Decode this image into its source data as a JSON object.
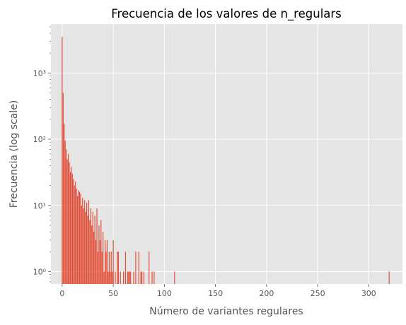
{
  "chart_data": {
    "type": "bar",
    "title": "Frecuencia de los valores de n_regulars",
    "xlabel": "Número de variantes regulares",
    "ylabel": "Frecuencia (log scale)",
    "y_scale": "log",
    "xlim": [
      -11,
      333
    ],
    "ylim": [
      0.65,
      5500
    ],
    "grid": true,
    "bar_color": "#E24A33",
    "background_color": "#E5E5E5",
    "grid_color": "#FFFFFF",
    "x_ticks": [
      0,
      50,
      100,
      150,
      200,
      250,
      300
    ],
    "x_tick_labels": [
      "0",
      "50",
      "100",
      "150",
      "200",
      "250",
      "300"
    ],
    "y_ticks": [
      1,
      10,
      100,
      1000
    ],
    "y_tick_labels": [
      "10⁰",
      "10¹",
      "10²",
      "10³"
    ],
    "x": [
      0,
      1,
      2,
      3,
      4,
      5,
      6,
      7,
      8,
      9,
      10,
      11,
      12,
      13,
      14,
      15,
      16,
      17,
      18,
      19,
      20,
      21,
      22,
      23,
      24,
      25,
      26,
      27,
      28,
      29,
      30,
      31,
      32,
      33,
      34,
      35,
      36,
      37,
      38,
      39,
      40,
      41,
      42,
      43,
      44,
      45,
      46,
      47,
      48,
      49,
      50,
      52,
      54,
      55,
      57,
      60,
      62,
      64,
      65,
      66,
      67,
      70,
      72,
      75,
      77,
      78,
      80,
      85,
      88,
      90,
      110,
      320
    ],
    "values": [
      3500,
      500,
      170,
      95,
      70,
      50,
      60,
      45,
      32,
      38,
      30,
      25,
      20,
      23,
      18,
      14,
      17,
      16,
      15,
      10,
      13,
      9,
      12,
      8,
      11,
      7,
      12,
      6,
      9,
      5,
      8,
      4,
      7,
      3,
      9,
      2,
      5,
      3,
      6,
      2,
      4,
      1,
      3,
      2,
      3,
      1,
      2,
      1,
      2,
      1,
      3,
      1,
      2,
      2,
      1,
      1,
      2,
      1,
      1,
      1,
      1,
      1,
      2,
      2,
      1,
      1,
      1,
      2,
      1,
      1,
      1,
      1
    ]
  }
}
